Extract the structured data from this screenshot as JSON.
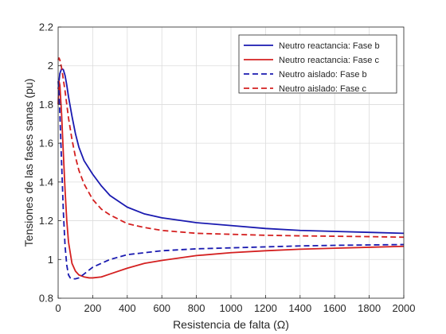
{
  "chart_data": {
    "type": "line",
    "title": "",
    "xlabel": "Resistencia de falta (Ω)",
    "ylabel": "Tensiones de las fases sanas (pu)",
    "xlim": [
      0,
      2000
    ],
    "ylim": [
      0.8,
      2.2
    ],
    "xticks": [
      "0",
      "200",
      "400",
      "600",
      "800",
      "1000",
      "1200",
      "1400",
      "1600",
      "1800",
      "2000"
    ],
    "yticks": [
      "0.8",
      "1",
      "1.2",
      "1.4",
      "1.6",
      "1.8",
      "2",
      "2.2"
    ],
    "grid": true,
    "legend_position": "top-right",
    "series": [
      {
        "name": "Neutro reactancia: Fase b",
        "color": "#1a1ab0",
        "dash": "solid",
        "x": [
          0,
          10,
          20,
          30,
          40,
          50,
          60,
          80,
          100,
          120,
          150,
          200,
          250,
          300,
          400,
          500,
          600,
          800,
          1000,
          1200,
          1400,
          1600,
          1800,
          2000
        ],
        "y": [
          1.88,
          1.96,
          1.985,
          1.98,
          1.95,
          1.9,
          1.84,
          1.74,
          1.65,
          1.58,
          1.51,
          1.44,
          1.38,
          1.33,
          1.27,
          1.235,
          1.215,
          1.19,
          1.175,
          1.16,
          1.15,
          1.145,
          1.14,
          1.135
        ]
      },
      {
        "name": "Neutro reactancia: Fase c",
        "color": "#d42020",
        "dash": "solid",
        "x": [
          0,
          5,
          10,
          20,
          30,
          40,
          50,
          60,
          80,
          100,
          120,
          150,
          180,
          200,
          250,
          300,
          400,
          500,
          600,
          800,
          1000,
          1200,
          1400,
          1600,
          1800,
          2000
        ],
        "y": [
          1.8,
          1.92,
          1.9,
          1.75,
          1.55,
          1.36,
          1.2,
          1.09,
          0.98,
          0.94,
          0.92,
          0.91,
          0.905,
          0.905,
          0.91,
          0.925,
          0.955,
          0.98,
          0.995,
          1.02,
          1.035,
          1.045,
          1.053,
          1.058,
          1.063,
          1.068
        ]
      },
      {
        "name": "Neutro aislado: Fase b",
        "color": "#1a1ab0",
        "dash": "dashed",
        "x": [
          0,
          5,
          10,
          20,
          30,
          40,
          50,
          60,
          70,
          80,
          100,
          120,
          150,
          200,
          300,
          400,
          600,
          800,
          1000,
          1200,
          1400,
          1600,
          1800,
          2000
        ],
        "y": [
          1.92,
          1.86,
          1.75,
          1.5,
          1.25,
          1.07,
          0.97,
          0.92,
          0.905,
          0.9,
          0.9,
          0.905,
          0.925,
          0.96,
          1.0,
          1.025,
          1.045,
          1.055,
          1.06,
          1.065,
          1.07,
          1.073,
          1.075,
          1.077
        ]
      },
      {
        "name": "Neutro aislado: Fase c",
        "color": "#d42020",
        "dash": "dashed",
        "x": [
          0,
          5,
          10,
          20,
          30,
          40,
          50,
          60,
          80,
          100,
          120,
          150,
          200,
          250,
          300,
          400,
          500,
          600,
          800,
          1000,
          1200,
          1400,
          1600,
          1800,
          2000
        ],
        "y": [
          2.03,
          2.04,
          2.03,
          1.99,
          1.93,
          1.87,
          1.8,
          1.73,
          1.62,
          1.53,
          1.46,
          1.39,
          1.31,
          1.26,
          1.23,
          1.185,
          1.165,
          1.15,
          1.135,
          1.13,
          1.125,
          1.122,
          1.12,
          1.118,
          1.115
        ]
      }
    ]
  }
}
